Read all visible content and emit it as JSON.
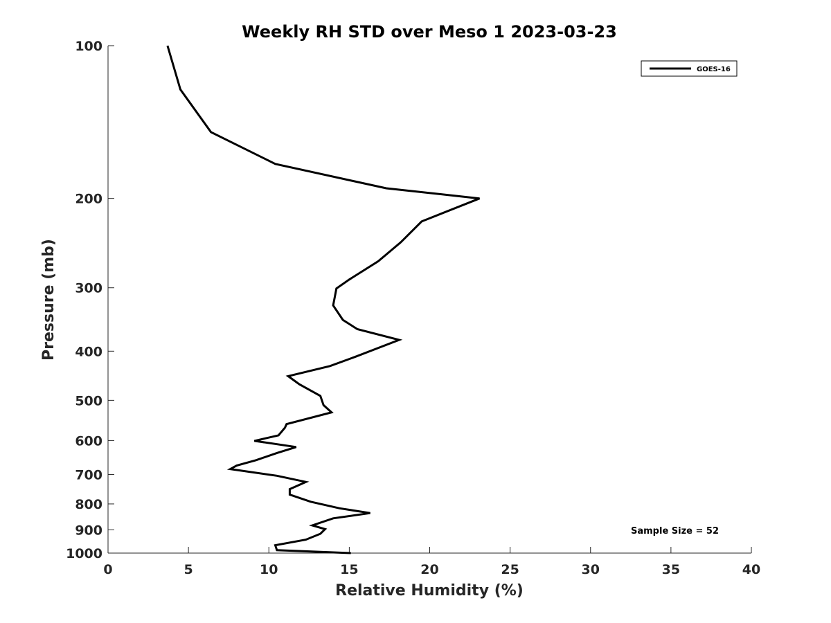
{
  "chart_data": {
    "type": "line",
    "title": "Weekly RH STD over Meso 1 2023-03-23",
    "xlabel": "Relative Humidity (%)",
    "ylabel": "Pressure (mb)",
    "xlim": [
      0,
      40
    ],
    "ylim": [
      100,
      1000
    ],
    "yscale": "log",
    "y_reversed": true,
    "xticks": [
      0,
      5,
      10,
      15,
      20,
      25,
      30,
      35,
      40
    ],
    "xtick_labels": [
      "0",
      "5",
      "10",
      "15",
      "20",
      "25",
      "30",
      "35",
      "40"
    ],
    "yticks": [
      100,
      200,
      300,
      400,
      500,
      600,
      700,
      800,
      900,
      1000
    ],
    "ytick_labels": [
      "100",
      "200",
      "300",
      "400",
      "500",
      "600",
      "700",
      "800",
      "900",
      "1000"
    ],
    "grid": false,
    "legend_location": "top-right",
    "annotation": "Sample Size = 52",
    "series": [
      {
        "name": "GOES-16",
        "color": "#000000",
        "x": [
          3.7,
          4.5,
          6.4,
          10.4,
          17.3,
          23.1,
          19.5,
          18.2,
          16.8,
          15.0,
          14.2,
          14.0,
          14.6,
          15.5,
          18.1,
          15.4,
          13.8,
          11.2,
          11.9,
          13.2,
          13.4,
          13.9,
          11.1,
          11.0,
          10.6,
          9.1,
          11.7,
          10.5,
          9.2,
          8.0,
          7.6,
          10.5,
          12.3,
          11.3,
          11.3,
          12.6,
          14.4,
          16.3,
          14.0,
          12.7,
          13.5,
          13.2,
          12.3,
          10.4,
          10.5,
          15.1
        ],
        "y": [
          100,
          122,
          148,
          171,
          191,
          200,
          222,
          244,
          266,
          289,
          301,
          325,
          347,
          362,
          380,
          410,
          428,
          448,
          465,
          490,
          511,
          528,
          557,
          566,
          586,
          601,
          618,
          635,
          656,
          672,
          683,
          704,
          724,
          748,
          767,
          792,
          816,
          834,
          854,
          882,
          897,
          916,
          941,
          965,
          987,
          1000
        ]
      }
    ]
  }
}
